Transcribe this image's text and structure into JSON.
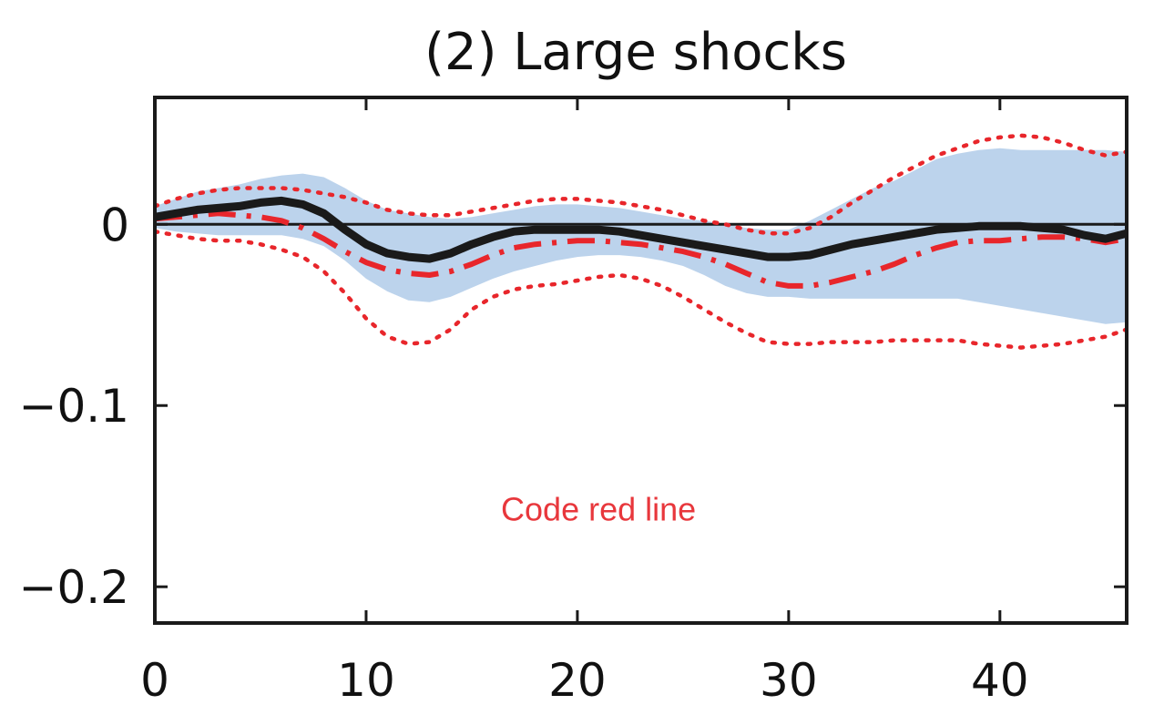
{
  "chart_data": {
    "type": "line",
    "title": "(2) Large shocks",
    "xlabel": "",
    "ylabel": "",
    "xlim": [
      0,
      46
    ],
    "ylim": [
      -0.22,
      0.07
    ],
    "x_ticks": [
      0,
      10,
      20,
      30,
      40
    ],
    "x_tick_labels": [
      "0",
      "10",
      "20",
      "30",
      "40"
    ],
    "y_ticks": [
      0,
      -0.1,
      -0.2
    ],
    "y_tick_labels": [
      "0",
      "−0.1",
      "−0.2"
    ],
    "grid": false,
    "legend": null,
    "zero_line": true,
    "annotation": {
      "text": "Code red line",
      "x": 21,
      "y": -0.157,
      "color": "#e8373c"
    },
    "colors": {
      "band": "#bcd3ec",
      "black_line": "#1a1a1a",
      "red": "#e8262b",
      "axes": "#1a1a1a"
    },
    "x": [
      0,
      1,
      2,
      3,
      4,
      5,
      6,
      7,
      8,
      9,
      10,
      11,
      12,
      13,
      14,
      15,
      16,
      17,
      18,
      19,
      20,
      21,
      22,
      23,
      24,
      25,
      26,
      27,
      28,
      29,
      30,
      31,
      32,
      33,
      34,
      35,
      36,
      37,
      38,
      39,
      40,
      41,
      42,
      43,
      44,
      45,
      46
    ],
    "band": {
      "upper": [
        0.01,
        0.014,
        0.018,
        0.02,
        0.022,
        0.025,
        0.027,
        0.028,
        0.026,
        0.02,
        0.013,
        0.008,
        0.006,
        0.004,
        0.003,
        0.004,
        0.006,
        0.008,
        0.01,
        0.011,
        0.011,
        0.01,
        0.009,
        0.007,
        0.005,
        0.003,
        0.002,
        0.0,
        -0.002,
        -0.003,
        -0.003,
        0.002,
        0.008,
        0.014,
        0.02,
        0.024,
        0.03,
        0.036,
        0.039,
        0.041,
        0.042,
        0.041,
        0.041,
        0.041,
        0.041,
        0.041,
        0.04
      ],
      "lower": [
        -0.002,
        -0.004,
        -0.005,
        -0.006,
        -0.006,
        -0.006,
        -0.006,
        -0.008,
        -0.012,
        -0.02,
        -0.03,
        -0.037,
        -0.042,
        -0.043,
        -0.04,
        -0.035,
        -0.03,
        -0.026,
        -0.023,
        -0.02,
        -0.018,
        -0.017,
        -0.017,
        -0.018,
        -0.02,
        -0.023,
        -0.028,
        -0.034,
        -0.038,
        -0.04,
        -0.04,
        -0.041,
        -0.041,
        -0.041,
        -0.041,
        -0.041,
        -0.041,
        -0.041,
        -0.041,
        -0.043,
        -0.045,
        -0.047,
        -0.049,
        -0.051,
        -0.053,
        -0.055,
        -0.054
      ]
    },
    "series": [
      {
        "style": "solid-black",
        "values": [
          0.004,
          0.006,
          0.008,
          0.009,
          0.01,
          0.012,
          0.013,
          0.011,
          0.006,
          -0.003,
          -0.011,
          -0.016,
          -0.018,
          -0.019,
          -0.016,
          -0.011,
          -0.007,
          -0.004,
          -0.003,
          -0.003,
          -0.003,
          -0.003,
          -0.004,
          -0.006,
          -0.008,
          -0.01,
          -0.012,
          -0.014,
          -0.016,
          -0.018,
          -0.018,
          -0.017,
          -0.014,
          -0.011,
          -0.009,
          -0.007,
          -0.005,
          -0.003,
          -0.002,
          -0.001,
          -0.001,
          -0.001,
          -0.002,
          -0.003,
          -0.006,
          -0.008,
          -0.005
        ]
      },
      {
        "style": "dashdot-red",
        "values": [
          0.003,
          0.004,
          0.005,
          0.006,
          0.005,
          0.004,
          0.002,
          -0.002,
          -0.008,
          -0.015,
          -0.021,
          -0.025,
          -0.027,
          -0.028,
          -0.026,
          -0.022,
          -0.017,
          -0.013,
          -0.011,
          -0.01,
          -0.009,
          -0.009,
          -0.01,
          -0.011,
          -0.013,
          -0.015,
          -0.018,
          -0.022,
          -0.027,
          -0.032,
          -0.034,
          -0.034,
          -0.032,
          -0.029,
          -0.026,
          -0.022,
          -0.017,
          -0.013,
          -0.01,
          -0.009,
          -0.009,
          -0.008,
          -0.007,
          -0.007,
          -0.008,
          -0.01,
          -0.008
        ]
      },
      {
        "style": "dotted-red",
        "values": [
          0.01,
          0.014,
          0.017,
          0.019,
          0.02,
          0.02,
          0.02,
          0.019,
          0.017,
          0.015,
          0.012,
          0.008,
          0.006,
          0.005,
          0.005,
          0.007,
          0.009,
          0.011,
          0.013,
          0.014,
          0.014,
          0.013,
          0.012,
          0.01,
          0.008,
          0.005,
          0.002,
          0.0,
          -0.003,
          -0.005,
          -0.005,
          -0.002,
          0.004,
          0.012,
          0.019,
          0.026,
          0.032,
          0.038,
          0.042,
          0.046,
          0.048,
          0.049,
          0.048,
          0.045,
          0.041,
          0.038,
          0.04
        ]
      },
      {
        "style": "dotted-red",
        "values": [
          -0.004,
          -0.006,
          -0.008,
          -0.009,
          -0.009,
          -0.011,
          -0.014,
          -0.018,
          -0.026,
          -0.038,
          -0.052,
          -0.062,
          -0.066,
          -0.065,
          -0.058,
          -0.047,
          -0.04,
          -0.036,
          -0.034,
          -0.033,
          -0.031,
          -0.029,
          -0.028,
          -0.03,
          -0.034,
          -0.04,
          -0.047,
          -0.054,
          -0.06,
          -0.065,
          -0.066,
          -0.066,
          -0.065,
          -0.065,
          -0.065,
          -0.064,
          -0.064,
          -0.064,
          -0.064,
          -0.066,
          -0.067,
          -0.068,
          -0.067,
          -0.066,
          -0.064,
          -0.062,
          -0.058
        ]
      }
    ]
  }
}
